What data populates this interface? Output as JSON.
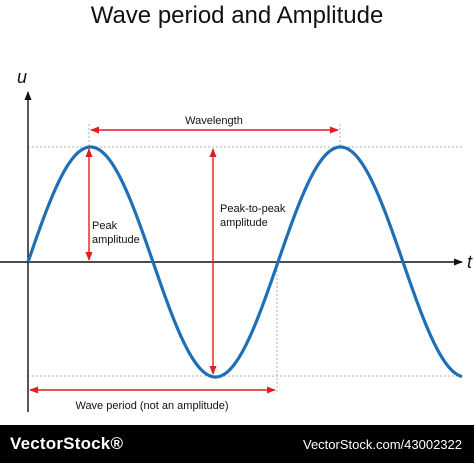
{
  "title": "Wave period and Amplitude",
  "axes": {
    "y_label": "u",
    "x_label": "t"
  },
  "annotations": {
    "wavelength": "Wavelength",
    "peak_amplitude_line1": "Peak",
    "peak_amplitude_line2": "amplitude",
    "peak_to_peak_line1": "Peak-to-peak",
    "peak_to_peak_line2": "amplitude",
    "wave_period": "Wave period (not an amplitude)"
  },
  "colors": {
    "wave": "#1f6fb5",
    "arrows": "#e02020",
    "axes": "#111111",
    "guides": "#999999"
  },
  "footer": {
    "brand": "VectorStock®",
    "image_id": "VectorStock.com/43002322"
  }
}
